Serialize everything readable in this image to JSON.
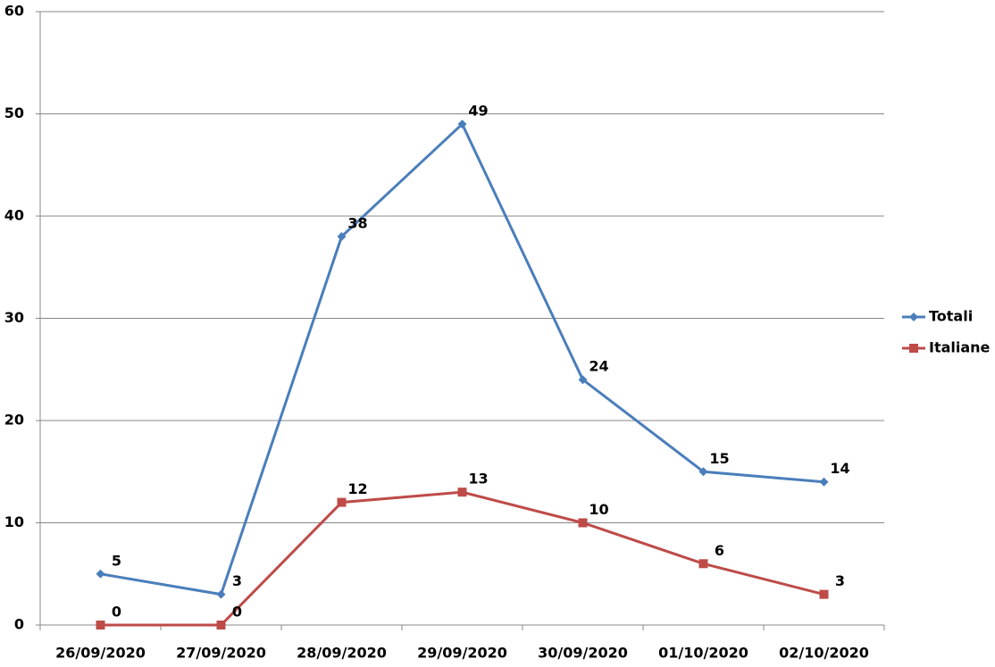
{
  "chart_data": {
    "type": "line",
    "categories": [
      "26/09/2020",
      "27/09/2020",
      "28/09/2020",
      "29/09/2020",
      "30/09/2020",
      "01/10/2020",
      "02/10/2020"
    ],
    "series": [
      {
        "name": "Totali",
        "color": "#4a7ebb",
        "marker": "diamond",
        "values": [
          5,
          3,
          38,
          49,
          24,
          15,
          14
        ]
      },
      {
        "name": "Italiane",
        "color": "#be4b48",
        "marker": "square",
        "values": [
          0,
          0,
          12,
          13,
          10,
          6,
          3
        ]
      }
    ],
    "ylim": [
      0,
      60
    ],
    "yticks": [
      0,
      10,
      20,
      30,
      40,
      50,
      60
    ],
    "grid": true,
    "legend": "right"
  }
}
